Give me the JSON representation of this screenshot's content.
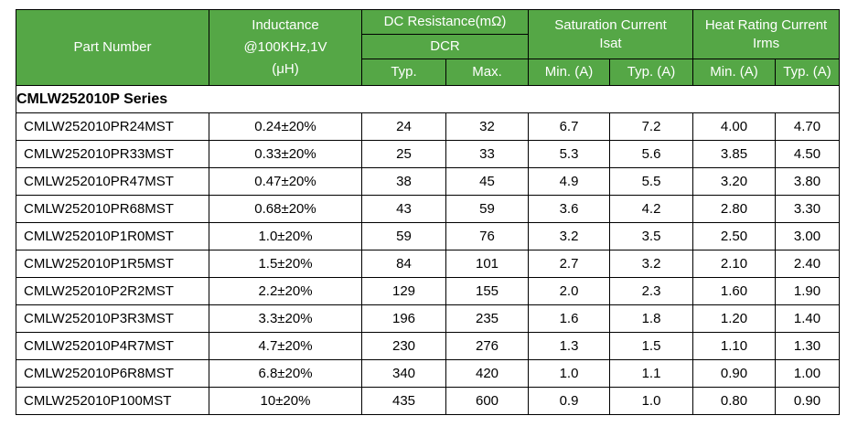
{
  "header": {
    "part_number": "Part Number",
    "inductance": [
      "Inductance",
      "@100KHz,1V",
      "(μH)"
    ],
    "dcr": {
      "line1": "DC Resistance(mΩ)",
      "line2": "DCR",
      "typ": "Typ.",
      "max": "Max."
    },
    "sat": {
      "line1": "Saturation Current",
      "line2": "Isat",
      "min": "Min. (A)",
      "typ": "Typ. (A)"
    },
    "heat": {
      "line1": "Heat Rating Current",
      "line2": "Irms",
      "min": "Min. (A)",
      "typ": "Typ. (A)"
    }
  },
  "series_title": "CMLW252010P Series",
  "rows": [
    [
      "CMLW252010PR24MST",
      "0.24±20%",
      "24",
      "32",
      "6.7",
      "7.2",
      "4.00",
      "4.70"
    ],
    [
      "CMLW252010PR33MST",
      "0.33±20%",
      "25",
      "33",
      "5.3",
      "5.6",
      "3.85",
      "4.50"
    ],
    [
      "CMLW252010PR47MST",
      "0.47±20%",
      "38",
      "45",
      "4.9",
      "5.5",
      "3.20",
      "3.80"
    ],
    [
      "CMLW252010PR68MST",
      "0.68±20%",
      "43",
      "59",
      "3.6",
      "4.2",
      "2.80",
      "3.30"
    ],
    [
      "CMLW252010P1R0MST",
      "1.0±20%",
      "59",
      "76",
      "3.2",
      "3.5",
      "2.50",
      "3.00"
    ],
    [
      "CMLW252010P1R5MST",
      "1.5±20%",
      "84",
      "101",
      "2.7",
      "3.2",
      "2.10",
      "2.40"
    ],
    [
      "CMLW252010P2R2MST",
      "2.2±20%",
      "129",
      "155",
      "2.0",
      "2.3",
      "1.60",
      "1.90"
    ],
    [
      "CMLW252010P3R3MST",
      "3.3±20%",
      "196",
      "235",
      "1.6",
      "1.8",
      "1.20",
      "1.40"
    ],
    [
      "CMLW252010P4R7MST",
      "4.7±20%",
      "230",
      "276",
      "1.3",
      "1.5",
      "1.10",
      "1.30"
    ],
    [
      "CMLW252010P6R8MST",
      "6.8±20%",
      "340",
      "420",
      "1.0",
      "1.1",
      "0.90",
      "1.00"
    ],
    [
      "CMLW252010P100MST",
      "10±20%",
      "435",
      "600",
      "0.9",
      "1.0",
      "0.80",
      "0.90"
    ]
  ],
  "colors": {
    "header_bg": "#55a746",
    "header_text": "#ffffff",
    "border": "#000000"
  }
}
